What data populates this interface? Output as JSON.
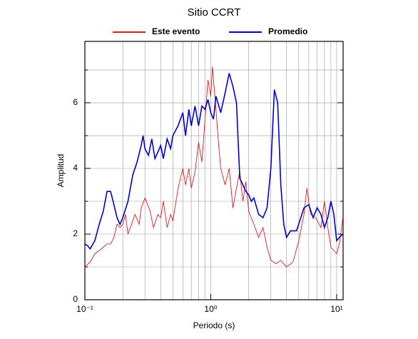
{
  "chart_data": {
    "type": "line",
    "title": "Sitio CCRT",
    "xlabel": "Periodo (s)",
    "ylabel": "Amplitud",
    "xscale": "log",
    "grid": true,
    "legend": "top",
    "xlim": [
      0.1,
      11.25
    ],
    "ylim": [
      0,
      7.87
    ],
    "xticks": [
      {
        "value": 0.1,
        "label": "10⁻¹"
      },
      {
        "value": 1,
        "label": "10⁰"
      },
      {
        "value": 10,
        "label": "10¹"
      }
    ],
    "minor_xticks": [
      0.2,
      0.3,
      0.4,
      0.5,
      0.6,
      0.7,
      0.8,
      0.9,
      2,
      3,
      4,
      5,
      6,
      7,
      8,
      9
    ],
    "yticks": [
      0,
      2,
      4,
      6
    ],
    "minor_yticks": [
      1,
      3,
      5,
      7
    ],
    "series": [
      {
        "name": "Este evento",
        "color": "#e41a1c",
        "x": [
          0.1,
          0.11,
          0.12,
          0.13,
          0.14,
          0.15,
          0.16,
          0.17,
          0.18,
          0.19,
          0.2,
          0.21,
          0.22,
          0.23,
          0.25,
          0.27,
          0.28,
          0.3,
          0.33,
          0.35,
          0.38,
          0.4,
          0.42,
          0.45,
          0.48,
          0.5,
          0.55,
          0.6,
          0.63,
          0.67,
          0.7,
          0.75,
          0.8,
          0.85,
          0.9,
          0.95,
          1.0,
          1.03,
          1.1,
          1.15,
          1.2,
          1.3,
          1.4,
          1.5,
          1.6,
          1.7,
          1.8,
          1.9,
          2.0,
          2.2,
          2.4,
          2.6,
          2.8,
          3.0,
          3.3,
          3.6,
          4.0,
          4.5,
          5.0,
          5.5,
          5.8,
          6.2,
          6.8,
          7.5,
          8.0,
          8.5,
          9.0,
          9.5,
          10.0,
          10.5,
          11.2
        ],
        "values": [
          1.0,
          1.15,
          1.4,
          1.5,
          1.6,
          1.7,
          1.7,
          1.9,
          2.3,
          2.2,
          2.3,
          2.6,
          2.0,
          2.2,
          2.6,
          2.3,
          2.8,
          3.1,
          2.7,
          2.2,
          2.6,
          2.5,
          3.0,
          2.2,
          2.6,
          2.4,
          3.4,
          4.0,
          3.5,
          4.0,
          3.4,
          3.9,
          4.8,
          4.2,
          5.5,
          6.7,
          6.2,
          7.1,
          5.8,
          4.8,
          4.0,
          3.5,
          4.0,
          2.8,
          3.4,
          3.9,
          3.0,
          3.6,
          2.7,
          2.3,
          1.9,
          2.2,
          1.6,
          1.2,
          1.1,
          1.2,
          1.0,
          1.15,
          1.8,
          2.6,
          3.4,
          2.6,
          2.5,
          2.2,
          3.0,
          2.2,
          1.6,
          1.5,
          1.4,
          1.7,
          2.5
        ]
      },
      {
        "name": "Promedio",
        "color": "#0000dd",
        "x": [
          0.1,
          0.105,
          0.11,
          0.12,
          0.13,
          0.14,
          0.15,
          0.16,
          0.17,
          0.18,
          0.19,
          0.2,
          0.22,
          0.24,
          0.26,
          0.28,
          0.29,
          0.3,
          0.32,
          0.34,
          0.36,
          0.38,
          0.4,
          0.42,
          0.45,
          0.48,
          0.5,
          0.55,
          0.6,
          0.63,
          0.67,
          0.7,
          0.75,
          0.8,
          0.85,
          0.9,
          0.95,
          1.0,
          1.05,
          1.1,
          1.2,
          1.3,
          1.4,
          1.5,
          1.6,
          1.7,
          1.8,
          1.9,
          2.0,
          2.1,
          2.2,
          2.4,
          2.6,
          2.8,
          3.0,
          3.2,
          3.4,
          3.6,
          3.8,
          4.0,
          4.3,
          4.8,
          5.5,
          6.0,
          6.5,
          7.0,
          7.5,
          8.0,
          8.5,
          9.0,
          9.5,
          10.0,
          10.5,
          11.2
        ],
        "values": [
          1.7,
          1.65,
          1.55,
          1.8,
          2.3,
          2.7,
          3.3,
          3.3,
          2.9,
          2.5,
          2.3,
          2.5,
          3.0,
          3.8,
          4.2,
          4.7,
          5.0,
          4.6,
          4.4,
          4.9,
          4.3,
          4.5,
          4.7,
          4.3,
          4.9,
          4.6,
          5.0,
          5.3,
          5.7,
          5.0,
          5.8,
          5.3,
          5.9,
          5.3,
          5.9,
          5.8,
          6.1,
          5.7,
          5.5,
          6.2,
          5.7,
          6.3,
          6.9,
          6.5,
          6.0,
          3.7,
          3.5,
          3.3,
          3.2,
          3.0,
          3.1,
          2.6,
          2.5,
          2.8,
          4.0,
          6.4,
          6.0,
          3.5,
          2.3,
          1.9,
          2.1,
          2.1,
          2.8,
          2.9,
          2.5,
          2.8,
          2.6,
          2.2,
          2.5,
          3.0,
          2.6,
          1.8,
          1.9,
          2.0
        ]
      }
    ]
  }
}
